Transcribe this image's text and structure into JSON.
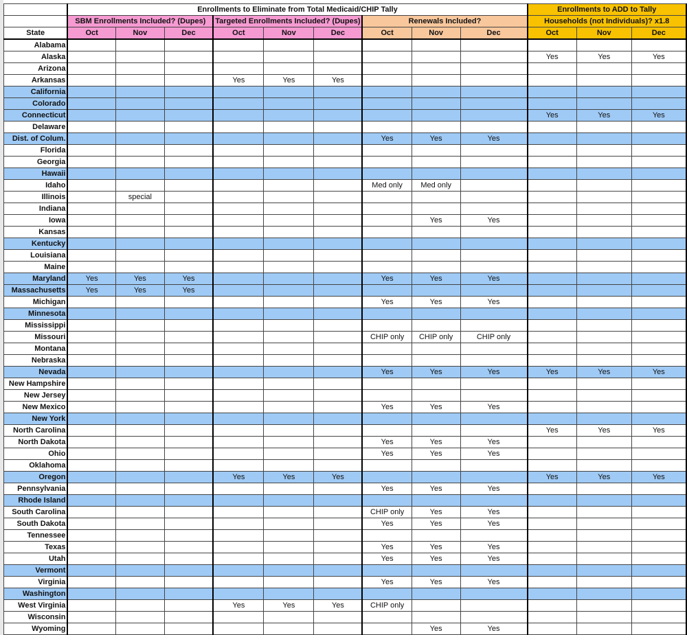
{
  "header": {
    "eliminate_title": "Enrollments to Eliminate from Total Medicaid/CHIP Tally",
    "add_title": "Enrollments to ADD to Tally",
    "groups": [
      "SBM Enrollments Included? (Dupes)",
      "Targeted Enrollments Included? (Dupes)",
      "Renewals Included?",
      "Households (not Individuals)? x1.8"
    ],
    "state_label": "State",
    "months": [
      "Oct",
      "Nov",
      "Dec",
      "Oct",
      "Nov",
      "Dec",
      "Oct",
      "Nov",
      "Dec",
      "Oct",
      "Nov",
      "Dec"
    ]
  },
  "colors": {
    "pink": "#f69ad2",
    "peach": "#f8c79c",
    "gold": "#f8c200",
    "highlight_row": "#9fcaf5"
  },
  "rows": [
    {
      "state": "Alabama",
      "hl": false,
      "cells": [
        "",
        "",
        "",
        "",
        "",
        "",
        "",
        "",
        "",
        "",
        "",
        ""
      ]
    },
    {
      "state": "Alaska",
      "hl": false,
      "cells": [
        "",
        "",
        "",
        "",
        "",
        "",
        "",
        "",
        "",
        "Yes",
        "Yes",
        "Yes"
      ]
    },
    {
      "state": "Arizona",
      "hl": false,
      "cells": [
        "",
        "",
        "",
        "",
        "",
        "",
        "",
        "",
        "",
        "",
        "",
        ""
      ]
    },
    {
      "state": "Arkansas",
      "hl": false,
      "cells": [
        "",
        "",
        "",
        "Yes",
        "Yes",
        "Yes",
        "",
        "",
        "",
        "",
        "",
        ""
      ]
    },
    {
      "state": "California",
      "hl": true,
      "cells": [
        "",
        "",
        "",
        "",
        "",
        "",
        "",
        "",
        "",
        "",
        "",
        ""
      ]
    },
    {
      "state": "Colorado",
      "hl": true,
      "cells": [
        "",
        "",
        "",
        "",
        "",
        "",
        "",
        "",
        "",
        "",
        "",
        ""
      ]
    },
    {
      "state": "Connecticut",
      "hl": true,
      "cells": [
        "",
        "",
        "",
        "",
        "",
        "",
        "",
        "",
        "",
        "Yes",
        "Yes",
        "Yes"
      ]
    },
    {
      "state": "Delaware",
      "hl": false,
      "cells": [
        "",
        "",
        "",
        "",
        "",
        "",
        "",
        "",
        "",
        "",
        "",
        ""
      ]
    },
    {
      "state": "Dist. of Colum.",
      "hl": true,
      "cells": [
        "",
        "",
        "",
        "",
        "",
        "",
        "Yes",
        "Yes",
        "Yes",
        "",
        "",
        ""
      ]
    },
    {
      "state": "Florida",
      "hl": false,
      "cells": [
        "",
        "",
        "",
        "",
        "",
        "",
        "",
        "",
        "",
        "",
        "",
        ""
      ]
    },
    {
      "state": "Georgia",
      "hl": false,
      "cells": [
        "",
        "",
        "",
        "",
        "",
        "",
        "",
        "",
        "",
        "",
        "",
        ""
      ]
    },
    {
      "state": "Hawaii",
      "hl": true,
      "cells": [
        "",
        "",
        "",
        "",
        "",
        "",
        "",
        "",
        "",
        "",
        "",
        ""
      ]
    },
    {
      "state": "Idaho",
      "hl": false,
      "cells": [
        "",
        "",
        "",
        "",
        "",
        "",
        "Med only",
        "Med only",
        "",
        "",
        "",
        ""
      ]
    },
    {
      "state": "Illinois",
      "hl": false,
      "cells": [
        "",
        "special",
        "",
        "",
        "",
        "",
        "",
        "",
        "",
        "",
        "",
        ""
      ]
    },
    {
      "state": "Indiana",
      "hl": false,
      "cells": [
        "",
        "",
        "",
        "",
        "",
        "",
        "",
        "",
        "",
        "",
        "",
        ""
      ]
    },
    {
      "state": "Iowa",
      "hl": false,
      "cells": [
        "",
        "",
        "",
        "",
        "",
        "",
        "",
        "Yes",
        "Yes",
        "",
        "",
        ""
      ]
    },
    {
      "state": "Kansas",
      "hl": false,
      "cells": [
        "",
        "",
        "",
        "",
        "",
        "",
        "",
        "",
        "",
        "",
        "",
        ""
      ]
    },
    {
      "state": "Kentucky",
      "hl": true,
      "cells": [
        "",
        "",
        "",
        "",
        "",
        "",
        "",
        "",
        "",
        "",
        "",
        ""
      ]
    },
    {
      "state": "Louisiana",
      "hl": false,
      "cells": [
        "",
        "",
        "",
        "",
        "",
        "",
        "",
        "",
        "",
        "",
        "",
        ""
      ]
    },
    {
      "state": "Maine",
      "hl": false,
      "cells": [
        "",
        "",
        "",
        "",
        "",
        "",
        "",
        "",
        "",
        "",
        "",
        ""
      ]
    },
    {
      "state": "Maryland",
      "hl": true,
      "cells": [
        "Yes",
        "Yes",
        "Yes",
        "",
        "",
        "",
        "Yes",
        "Yes",
        "Yes",
        "",
        "",
        ""
      ]
    },
    {
      "state": "Massachusetts",
      "hl": true,
      "cells": [
        "Yes",
        "Yes",
        "Yes",
        "",
        "",
        "",
        "",
        "",
        "",
        "",
        "",
        ""
      ]
    },
    {
      "state": "Michigan",
      "hl": false,
      "cells": [
        "",
        "",
        "",
        "",
        "",
        "",
        "Yes",
        "Yes",
        "Yes",
        "",
        "",
        ""
      ]
    },
    {
      "state": "Minnesota",
      "hl": true,
      "cells": [
        "",
        "",
        "",
        "",
        "",
        "",
        "",
        "",
        "",
        "",
        "",
        ""
      ]
    },
    {
      "state": "Mississippi",
      "hl": false,
      "cells": [
        "",
        "",
        "",
        "",
        "",
        "",
        "",
        "",
        "",
        "",
        "",
        ""
      ]
    },
    {
      "state": "Missouri",
      "hl": false,
      "cells": [
        "",
        "",
        "",
        "",
        "",
        "",
        "CHIP only",
        "CHIP only",
        "CHIP only",
        "",
        "",
        ""
      ]
    },
    {
      "state": "Montana",
      "hl": false,
      "cells": [
        "",
        "",
        "",
        "",
        "",
        "",
        "",
        "",
        "",
        "",
        "",
        ""
      ]
    },
    {
      "state": "Nebraska",
      "hl": false,
      "cells": [
        "",
        "",
        "",
        "",
        "",
        "",
        "",
        "",
        "",
        "",
        "",
        ""
      ]
    },
    {
      "state": "Nevada",
      "hl": true,
      "cells": [
        "",
        "",
        "",
        "",
        "",
        "",
        "Yes",
        "Yes",
        "Yes",
        "Yes",
        "Yes",
        "Yes"
      ]
    },
    {
      "state": "New Hampshire",
      "hl": false,
      "cells": [
        "",
        "",
        "",
        "",
        "",
        "",
        "",
        "",
        "",
        "",
        "",
        ""
      ]
    },
    {
      "state": "New Jersey",
      "hl": false,
      "cells": [
        "",
        "",
        "",
        "",
        "",
        "",
        "",
        "",
        "",
        "",
        "",
        ""
      ]
    },
    {
      "state": "New Mexico",
      "hl": false,
      "cells": [
        "",
        "",
        "",
        "",
        "",
        "",
        "Yes",
        "Yes",
        "Yes",
        "",
        "",
        ""
      ]
    },
    {
      "state": "New York",
      "hl": true,
      "cells": [
        "",
        "",
        "",
        "",
        "",
        "",
        "",
        "",
        "",
        "",
        "",
        ""
      ]
    },
    {
      "state": "North Carolina",
      "hl": false,
      "cells": [
        "",
        "",
        "",
        "",
        "",
        "",
        "",
        "",
        "",
        "Yes",
        "Yes",
        "Yes"
      ]
    },
    {
      "state": "North Dakota",
      "hl": false,
      "cells": [
        "",
        "",
        "",
        "",
        "",
        "",
        "Yes",
        "Yes",
        "Yes",
        "",
        "",
        ""
      ]
    },
    {
      "state": "Ohio",
      "hl": false,
      "cells": [
        "",
        "",
        "",
        "",
        "",
        "",
        "Yes",
        "Yes",
        "Yes",
        "",
        "",
        ""
      ]
    },
    {
      "state": "Oklahoma",
      "hl": false,
      "cells": [
        "",
        "",
        "",
        "",
        "",
        "",
        "",
        "",
        "",
        "",
        "",
        ""
      ]
    },
    {
      "state": "Oregon",
      "hl": true,
      "cells": [
        "",
        "",
        "",
        "Yes",
        "Yes",
        "Yes",
        "",
        "",
        "",
        "Yes",
        "Yes",
        "Yes"
      ]
    },
    {
      "state": "Pennsylvania",
      "hl": false,
      "cells": [
        "",
        "",
        "",
        "",
        "",
        "",
        "Yes",
        "Yes",
        "Yes",
        "",
        "",
        ""
      ]
    },
    {
      "state": "Rhode Island",
      "hl": true,
      "cells": [
        "",
        "",
        "",
        "",
        "",
        "",
        "",
        "",
        "",
        "",
        "",
        ""
      ]
    },
    {
      "state": "South Carolina",
      "hl": false,
      "cells": [
        "",
        "",
        "",
        "",
        "",
        "",
        "CHIP only",
        "Yes",
        "Yes",
        "",
        "",
        ""
      ]
    },
    {
      "state": "South Dakota",
      "hl": false,
      "cells": [
        "",
        "",
        "",
        "",
        "",
        "",
        "Yes",
        "Yes",
        "Yes",
        "",
        "",
        ""
      ]
    },
    {
      "state": "Tennessee",
      "hl": false,
      "cells": [
        "",
        "",
        "",
        "",
        "",
        "",
        "",
        "",
        "",
        "",
        "",
        ""
      ]
    },
    {
      "state": "Texas",
      "hl": false,
      "cells": [
        "",
        "",
        "",
        "",
        "",
        "",
        "Yes",
        "Yes",
        "Yes",
        "",
        "",
        ""
      ]
    },
    {
      "state": "Utah",
      "hl": false,
      "cells": [
        "",
        "",
        "",
        "",
        "",
        "",
        "Yes",
        "Yes",
        "Yes",
        "",
        "",
        ""
      ]
    },
    {
      "state": "Vermont",
      "hl": true,
      "cells": [
        "",
        "",
        "",
        "",
        "",
        "",
        "",
        "",
        "",
        "",
        "",
        ""
      ]
    },
    {
      "state": "Virginia",
      "hl": false,
      "cells": [
        "",
        "",
        "",
        "",
        "",
        "",
        "Yes",
        "Yes",
        "Yes",
        "",
        "",
        ""
      ]
    },
    {
      "state": "Washington",
      "hl": true,
      "cells": [
        "",
        "",
        "",
        "",
        "",
        "",
        "",
        "",
        "",
        "",
        "",
        ""
      ]
    },
    {
      "state": "West Virginia",
      "hl": false,
      "cells": [
        "",
        "",
        "",
        "Yes",
        "Yes",
        "Yes",
        "CHIP only",
        "",
        "",
        "",
        "",
        ""
      ]
    },
    {
      "state": "Wisconsin",
      "hl": false,
      "cells": [
        "",
        "",
        "",
        "",
        "",
        "",
        "",
        "",
        "",
        "",
        "",
        ""
      ]
    },
    {
      "state": "Wyoming",
      "hl": false,
      "cells": [
        "",
        "",
        "",
        "",
        "",
        "",
        "",
        "Yes",
        "Yes",
        "",
        "",
        ""
      ]
    }
  ]
}
